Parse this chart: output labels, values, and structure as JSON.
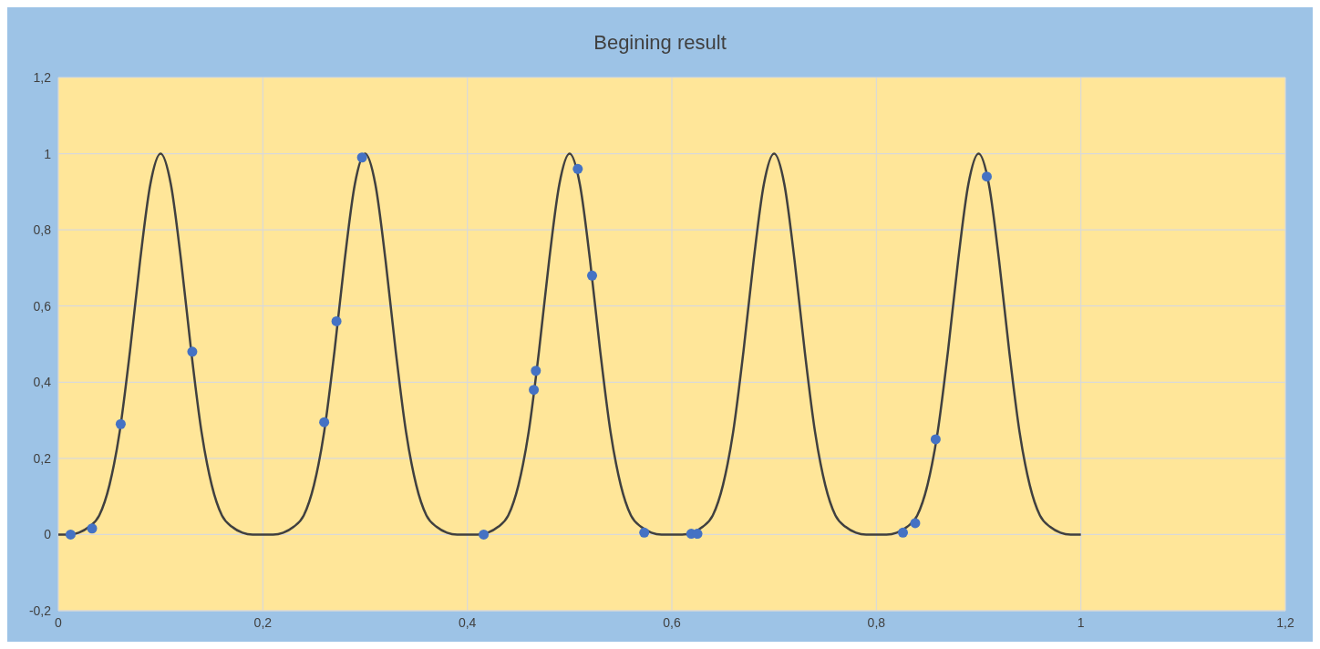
{
  "chart_data": {
    "type": "line",
    "title": "Begining result",
    "xlim": [
      0,
      1.2
    ],
    "xticks": [
      0,
      {
        "value": 0.2,
        "label": "0,2"
      },
      {
        "value": 0.4,
        "label": "0,4"
      },
      {
        "value": 0.6,
        "label": "0,6"
      },
      {
        "value": 0.8,
        "label": "0,8"
      },
      1,
      {
        "value": 1.2,
        "label": "1,2"
      }
    ],
    "ylim": [
      -0.2,
      1.2
    ],
    "yticks": [
      {
        "value": -0.2,
        "label": "-0,2"
      },
      0,
      {
        "value": 0.2,
        "label": "0,2"
      },
      {
        "value": 0.4,
        "label": "0,4"
      },
      {
        "value": 0.6,
        "label": "0,6"
      },
      {
        "value": 0.8,
        "label": "0,8"
      },
      1,
      {
        "value": 1.2,
        "label": "1,2"
      }
    ],
    "grid": true,
    "series": [
      {
        "color": "#404040",
        "x": [
          0,
          0.01,
          0.02,
          0.03,
          0.04,
          0.05,
          0.06,
          0.07,
          0.08,
          0.09,
          0.1,
          0.11,
          0.12,
          0.13,
          0.14,
          0.15,
          0.16,
          0.17,
          0.18,
          0.19,
          0.2,
          0.21,
          0.22,
          0.23,
          0.24,
          0.25,
          0.26,
          0.27,
          0.28,
          0.29,
          0.3,
          0.31,
          0.32,
          0.33,
          0.34,
          0.35,
          0.36,
          0.37,
          0.38,
          0.39,
          0.4,
          0.41,
          0.42,
          0.43,
          0.44,
          0.45,
          0.46,
          0.47,
          0.48,
          0.49,
          0.5,
          0.51,
          0.52,
          0.53,
          0.54,
          0.55,
          0.56,
          0.57,
          0.58,
          0.59,
          0.6,
          0.61,
          0.62,
          0.63,
          0.64,
          0.65,
          0.66,
          0.67,
          0.68,
          0.69,
          0.7,
          0.71,
          0.72,
          0.73,
          0.74,
          0.75,
          0.76,
          0.77,
          0.78,
          0.79,
          0.8,
          0.81,
          0.82,
          0.83,
          0.84,
          0.85,
          0.86,
          0.87,
          0.88,
          0.89,
          0.9,
          0.91,
          0.92,
          0.93,
          0.94,
          0.95,
          0.96,
          0.97,
          0.98,
          0.99,
          1
        ],
        "values": [
          0,
          0,
          0.005,
          0.02,
          0.05,
          0.13,
          0.27,
          0.48,
          0.72,
          0.92,
          1,
          0.92,
          0.72,
          0.48,
          0.27,
          0.13,
          0.05,
          0.02,
          0.005,
          0,
          0,
          0,
          0.005,
          0.02,
          0.05,
          0.13,
          0.27,
          0.48,
          0.72,
          0.92,
          1,
          0.92,
          0.72,
          0.48,
          0.27,
          0.13,
          0.05,
          0.02,
          0.005,
          0,
          0,
          0,
          0.005,
          0.02,
          0.05,
          0.13,
          0.27,
          0.48,
          0.72,
          0.92,
          1,
          0.92,
          0.72,
          0.48,
          0.27,
          0.13,
          0.05,
          0.02,
          0.005,
          0,
          0,
          0,
          0.005,
          0.02,
          0.05,
          0.13,
          0.27,
          0.48,
          0.72,
          0.92,
          1,
          0.92,
          0.72,
          0.48,
          0.27,
          0.13,
          0.05,
          0.02,
          0.005,
          0,
          0,
          0,
          0.005,
          0.02,
          0.05,
          0.13,
          0.27,
          0.48,
          0.72,
          0.92,
          1,
          0.92,
          0.72,
          0.48,
          0.27,
          0.13,
          0.05,
          0.02,
          0.005,
          0,
          0
        ]
      },
      {
        "type": "scatter",
        "color": "#4472c4",
        "x": [
          0.012,
          0.033,
          0.061,
          0.131,
          0.26,
          0.272,
          0.297,
          0.416,
          0.465,
          0.467,
          0.508,
          0.522,
          0.573,
          0.619,
          0.625,
          0.826,
          0.838,
          0.858,
          0.908
        ],
        "values": [
          0,
          0.016,
          0.29,
          0.48,
          0.295,
          0.56,
          0.99,
          0,
          0.38,
          0.43,
          0.96,
          0.68,
          0.005,
          0.002,
          0.002,
          0.005,
          0.03,
          0.25,
          0.94
        ]
      }
    ]
  }
}
